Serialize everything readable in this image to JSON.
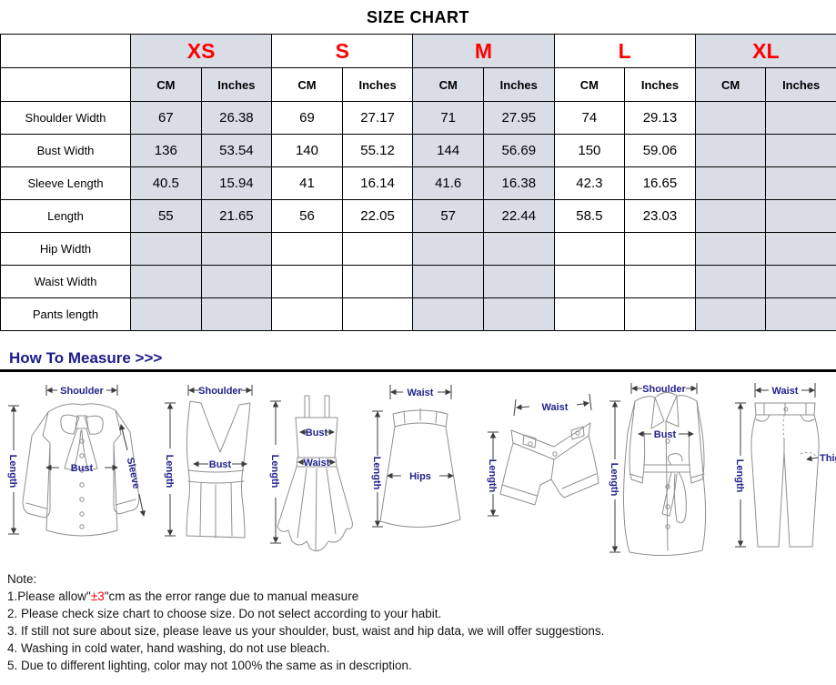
{
  "title": "SIZE CHART",
  "table": {
    "sizes": [
      {
        "label": "XS",
        "shaded": true
      },
      {
        "label": "S",
        "shaded": false
      },
      {
        "label": "M",
        "shaded": true
      },
      {
        "label": "L",
        "shaded": false
      },
      {
        "label": "XL",
        "shaded": true
      }
    ],
    "unit_labels": [
      "CM",
      "Inches"
    ],
    "rows": [
      {
        "label": "Shoulder Width",
        "values": [
          "67",
          "26.38",
          "69",
          "27.17",
          "71",
          "27.95",
          "74",
          "29.13",
          "",
          ""
        ]
      },
      {
        "label": "Bust Width",
        "values": [
          "136",
          "53.54",
          "140",
          "55.12",
          "144",
          "56.69",
          "150",
          "59.06",
          "",
          ""
        ]
      },
      {
        "label": "Sleeve Length",
        "values": [
          "40.5",
          "15.94",
          "41",
          "16.14",
          "41.6",
          "16.38",
          "42.3",
          "16.65",
          "",
          ""
        ]
      },
      {
        "label": "Length",
        "values": [
          "55",
          "21.65",
          "56",
          "22.05",
          "57",
          "22.44",
          "58.5",
          "23.03",
          "",
          ""
        ]
      },
      {
        "label": "Hip Width",
        "values": [
          "",
          "",
          "",
          "",
          "",
          "",
          "",
          "",
          "",
          ""
        ]
      },
      {
        "label": "Waist Width",
        "values": [
          "",
          "",
          "",
          "",
          "",
          "",
          "",
          "",
          "",
          ""
        ]
      },
      {
        "label": "Pants length",
        "values": [
          "",
          "",
          "",
          "",
          "",
          "",
          "",
          "",
          "",
          ""
        ]
      }
    ]
  },
  "how_to_measure": {
    "heading": "How To Measure >>>"
  },
  "diagrams": [
    {
      "name": "blouse",
      "labels": {
        "shoulder": "Shoulder",
        "length": "Length",
        "bust": "Bust",
        "sleeve": "Sleeve"
      }
    },
    {
      "name": "tank-top",
      "labels": {
        "shoulder": "Shoulder",
        "length": "Length",
        "bust": "Bust"
      }
    },
    {
      "name": "dress",
      "labels": {
        "length": "Length",
        "bust": "Bust",
        "waist": "Waist"
      }
    },
    {
      "name": "skirt",
      "labels": {
        "waist": "Waist",
        "length": "Length",
        "hips": "Hips"
      }
    },
    {
      "name": "shorts",
      "labels": {
        "waist": "Waist",
        "length": "Length"
      }
    },
    {
      "name": "coat",
      "labels": {
        "shoulder": "Shoulder",
        "length": "Length",
        "bust": "Bust"
      }
    },
    {
      "name": "pants",
      "labels": {
        "waist": "Waist",
        "length": "Length",
        "thigh": "Thigh"
      }
    }
  ],
  "notes": {
    "header": "Note:",
    "line1": {
      "pre": "1.Please allow\"",
      "highlight": "±3",
      "post": "\"cm as the error range due to manual measure"
    },
    "lines": [
      "2. Please check size chart to choose size. Do not select according to your habit.",
      "3. If still not sure about size, please leave us your shoulder, bust, waist and hip data, we will offer suggestions.",
      "4. Washing in cold water, hand washing, do not use bleach.",
      "5. Due to different lighting, color may not 100% the same as in description."
    ]
  },
  "colors": {
    "accent_red": "#ff0000",
    "header_shade": "#d9dde6",
    "label_navy": "#22228e",
    "heading_navy": "#1b1b8c"
  }
}
